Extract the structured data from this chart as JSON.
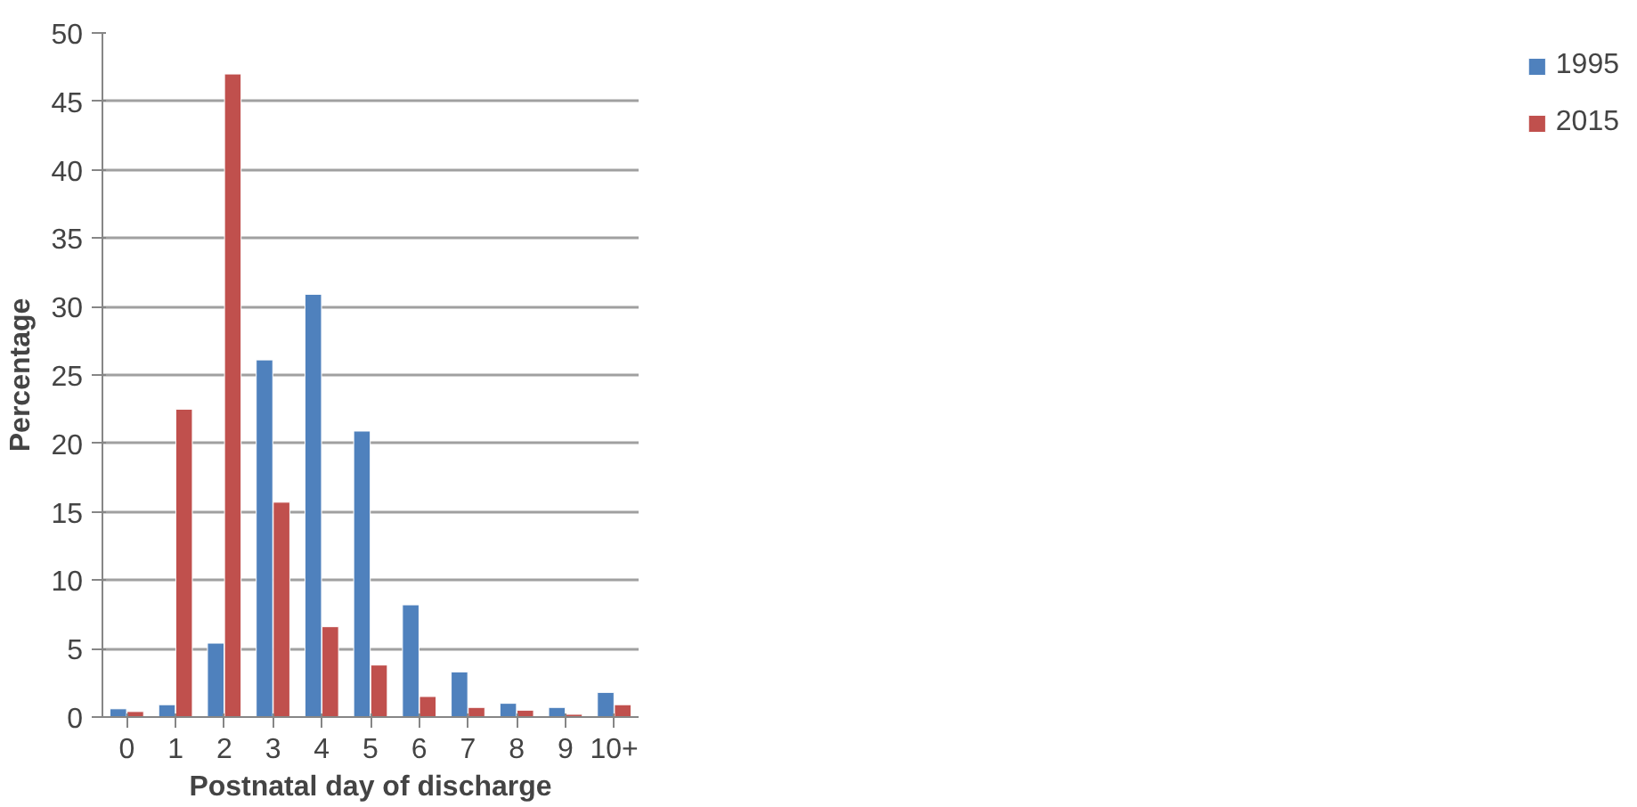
{
  "chart_data": {
    "type": "bar",
    "xlabel": "Postnatal day of discharge",
    "ylabel": "Percentage",
    "categories": [
      "0",
      "1",
      "2",
      "3",
      "4",
      "5",
      "6",
      "7",
      "8",
      "9",
      "10+"
    ],
    "series": [
      {
        "name": "1995",
        "color": "#4f81bd",
        "values": [
          0.6,
          0.9,
          5.4,
          26.1,
          30.9,
          20.9,
          8.2,
          3.3,
          1.0,
          0.7,
          1.8
        ]
      },
      {
        "name": "2015",
        "color": "#c0504d",
        "values": [
          0.4,
          22.5,
          47,
          15.7,
          6.6,
          3.8,
          1.5,
          0.7,
          0.5,
          0.2,
          0.9
        ]
      }
    ],
    "ylim": [
      0,
      50
    ],
    "yticks": [
      0,
      5,
      10,
      15,
      20,
      25,
      30,
      35,
      40,
      45,
      50
    ],
    "grid": "y",
    "legend": "right"
  }
}
